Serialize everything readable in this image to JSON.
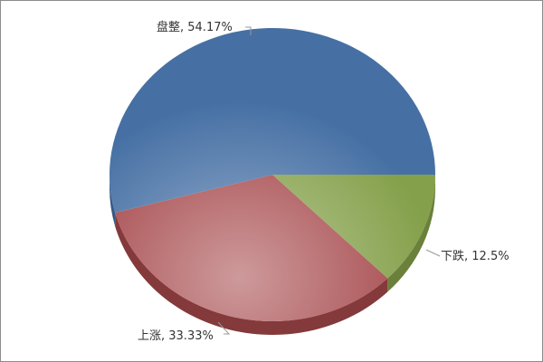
{
  "chart_data": {
    "type": "pie",
    "style": "3d",
    "categories": [
      "下跌",
      "上涨",
      "盘整"
    ],
    "values": [
      12.5,
      33.33,
      54.17
    ],
    "labels": [
      "下跌, 12.5%",
      "上涨, 33.33%",
      "盘整, 54.17%"
    ],
    "colors": [
      "#84A04A",
      "#A5474A",
      "#4670A4"
    ],
    "start_angle_deg": 0,
    "direction": "clockwise"
  }
}
